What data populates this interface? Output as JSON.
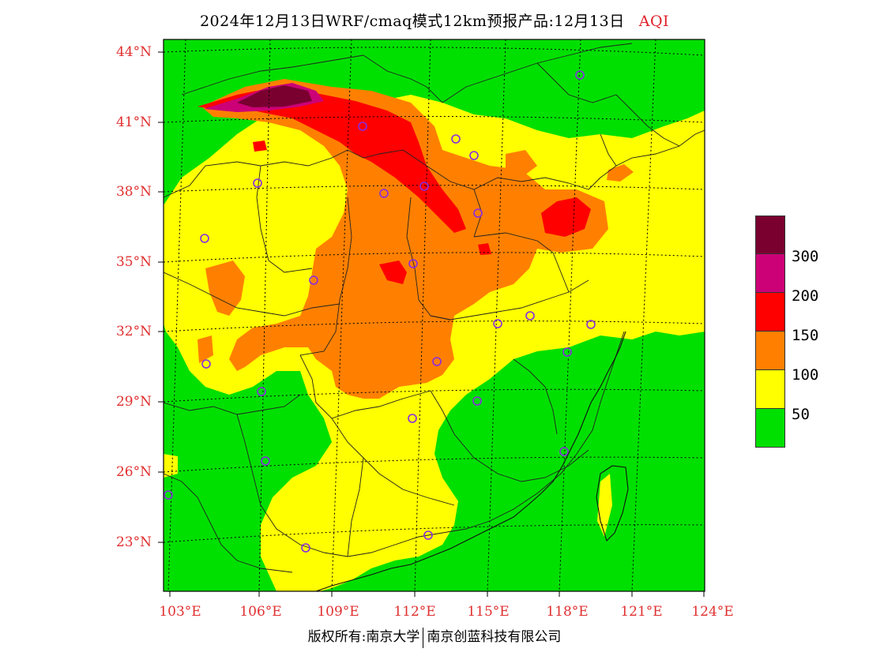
{
  "title": {
    "main": "2024年12月13日WRF/cmaq模式12km预报产品:12月13日",
    "variable": "AQI"
  },
  "latitude_labels": [
    "44°N",
    "41°N",
    "38°N",
    "35°N",
    "32°N",
    "29°N",
    "26°N",
    "23°N"
  ],
  "longitude_labels": [
    "103°E",
    "106°E",
    "109°E",
    "112°E",
    "115°E",
    "118°E",
    "121°E",
    "124°E"
  ],
  "legend": {
    "colors": [
      "#7a0030",
      "#cc0077",
      "#ff0000",
      "#ff8000",
      "#ffff00",
      "#00e000"
    ],
    "labels": [
      "300",
      "200",
      "150",
      "100",
      "50"
    ]
  },
  "colors": {
    "good": "#00e000",
    "moderate": "#ffff00",
    "usg": "#ff8000",
    "unhealthy": "#ff0000",
    "very_unhealthy": "#cc0077",
    "hazardous": "#7a0030",
    "station_marker": "#8a2be2",
    "axis_label": "#e03030"
  },
  "footer": {
    "left": "版权所有:南京大学",
    "right": "南京创蓝科技有限公司"
  }
}
